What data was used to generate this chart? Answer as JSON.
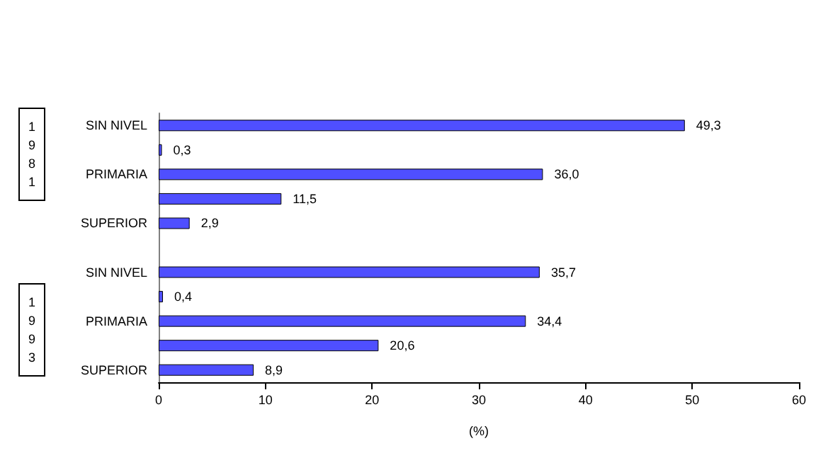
{
  "chart_data": {
    "type": "bar",
    "orientation": "horizontal",
    "xlabel": "(%)",
    "categories": [
      "SIN NIVEL",
      null,
      "PRIMARIA",
      null,
      "SUPERIOR",
      null,
      "SIN NIVEL",
      null,
      "PRIMARIA",
      null,
      "SUPERIOR"
    ],
    "values": [
      49.3,
      0.3,
      36.0,
      11.5,
      2.9,
      null,
      35.7,
      0.4,
      34.4,
      20.6,
      8.9
    ],
    "value_labels": [
      "49,3",
      "0,3",
      "36,0",
      "11,5",
      "2,9",
      null,
      "35,7",
      "0,4",
      "34,4",
      "20,6",
      "8,9"
    ],
    "color": "#4f4fff",
    "xlim": [
      0,
      60
    ],
    "xticks": [
      0,
      10,
      20,
      30,
      40,
      50,
      60
    ],
    "grid": false,
    "annotations": [
      "1981",
      "1993"
    ]
  }
}
